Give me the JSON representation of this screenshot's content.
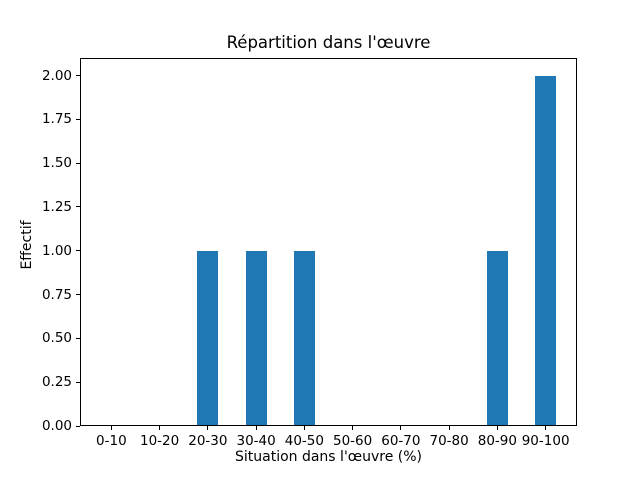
{
  "chart_data": {
    "type": "bar",
    "title": "Répartition dans l'œuvre",
    "xlabel": "Situation dans l'œuvre (%)",
    "ylabel": "Effectif",
    "categories": [
      "0-10",
      "10-20",
      "20-30",
      "30-40",
      "40-50",
      "50-60",
      "60-70",
      "70-80",
      "80-90",
      "90-100"
    ],
    "values": [
      0,
      0,
      1,
      1,
      1,
      0,
      0,
      0,
      1,
      2
    ],
    "ytick_labels": [
      "0.00",
      "0.25",
      "0.50",
      "0.75",
      "1.00",
      "1.25",
      "1.50",
      "1.75",
      "2.00"
    ],
    "ylim": [
      0,
      2.1
    ],
    "bar_color": "#1f77b4",
    "axis_color": "#000000",
    "background_color": "#ffffff",
    "grid": false,
    "legend": "none"
  }
}
